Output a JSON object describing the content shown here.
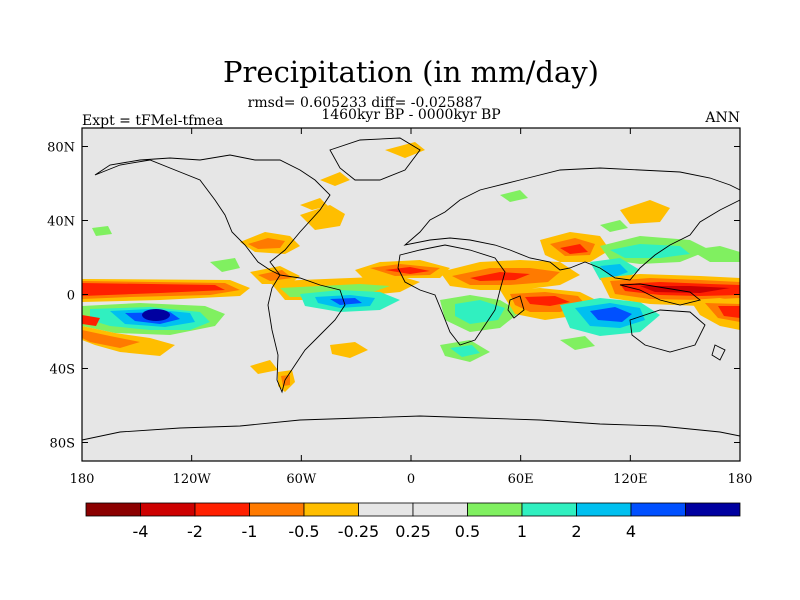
{
  "chart_data": {
    "type": "heatmap",
    "title": "Precipitation (in mm/day)",
    "subtitle_1": "rmsd= 0.605233 diff= -0.025887",
    "subtitle_2": "1460kyr BP - 0000kyr BP",
    "left_label": "Expt = tFMel-tfmea",
    "right_label": "ANN",
    "x_ticks": [
      "180",
      "120W",
      "60W",
      "0",
      "60E",
      "120E",
      "180"
    ],
    "y_ticks": [
      "80N",
      "40N",
      "0",
      "40S",
      "80S"
    ],
    "xlim": [
      -180,
      180
    ],
    "ylim": [
      -90,
      90
    ],
    "colorbar": {
      "colors": [
        "#8b0000",
        "#cd0000",
        "#ff2000",
        "#ff7a00",
        "#ffbe00",
        "#e6e6e6",
        "#e6e6e6",
        "#80f060",
        "#30f0c0",
        "#00c0f0",
        "#0050ff",
        "#0000a0"
      ],
      "labels": [
        "-4",
        "-2",
        "-1",
        "-0.5",
        "-0.25",
        "0.25",
        "0.5",
        "1",
        "2",
        "4"
      ],
      "levels": [
        -4,
        -2,
        -1,
        -0.5,
        -0.25,
        0.25,
        0.5,
        1,
        2,
        4
      ]
    }
  }
}
